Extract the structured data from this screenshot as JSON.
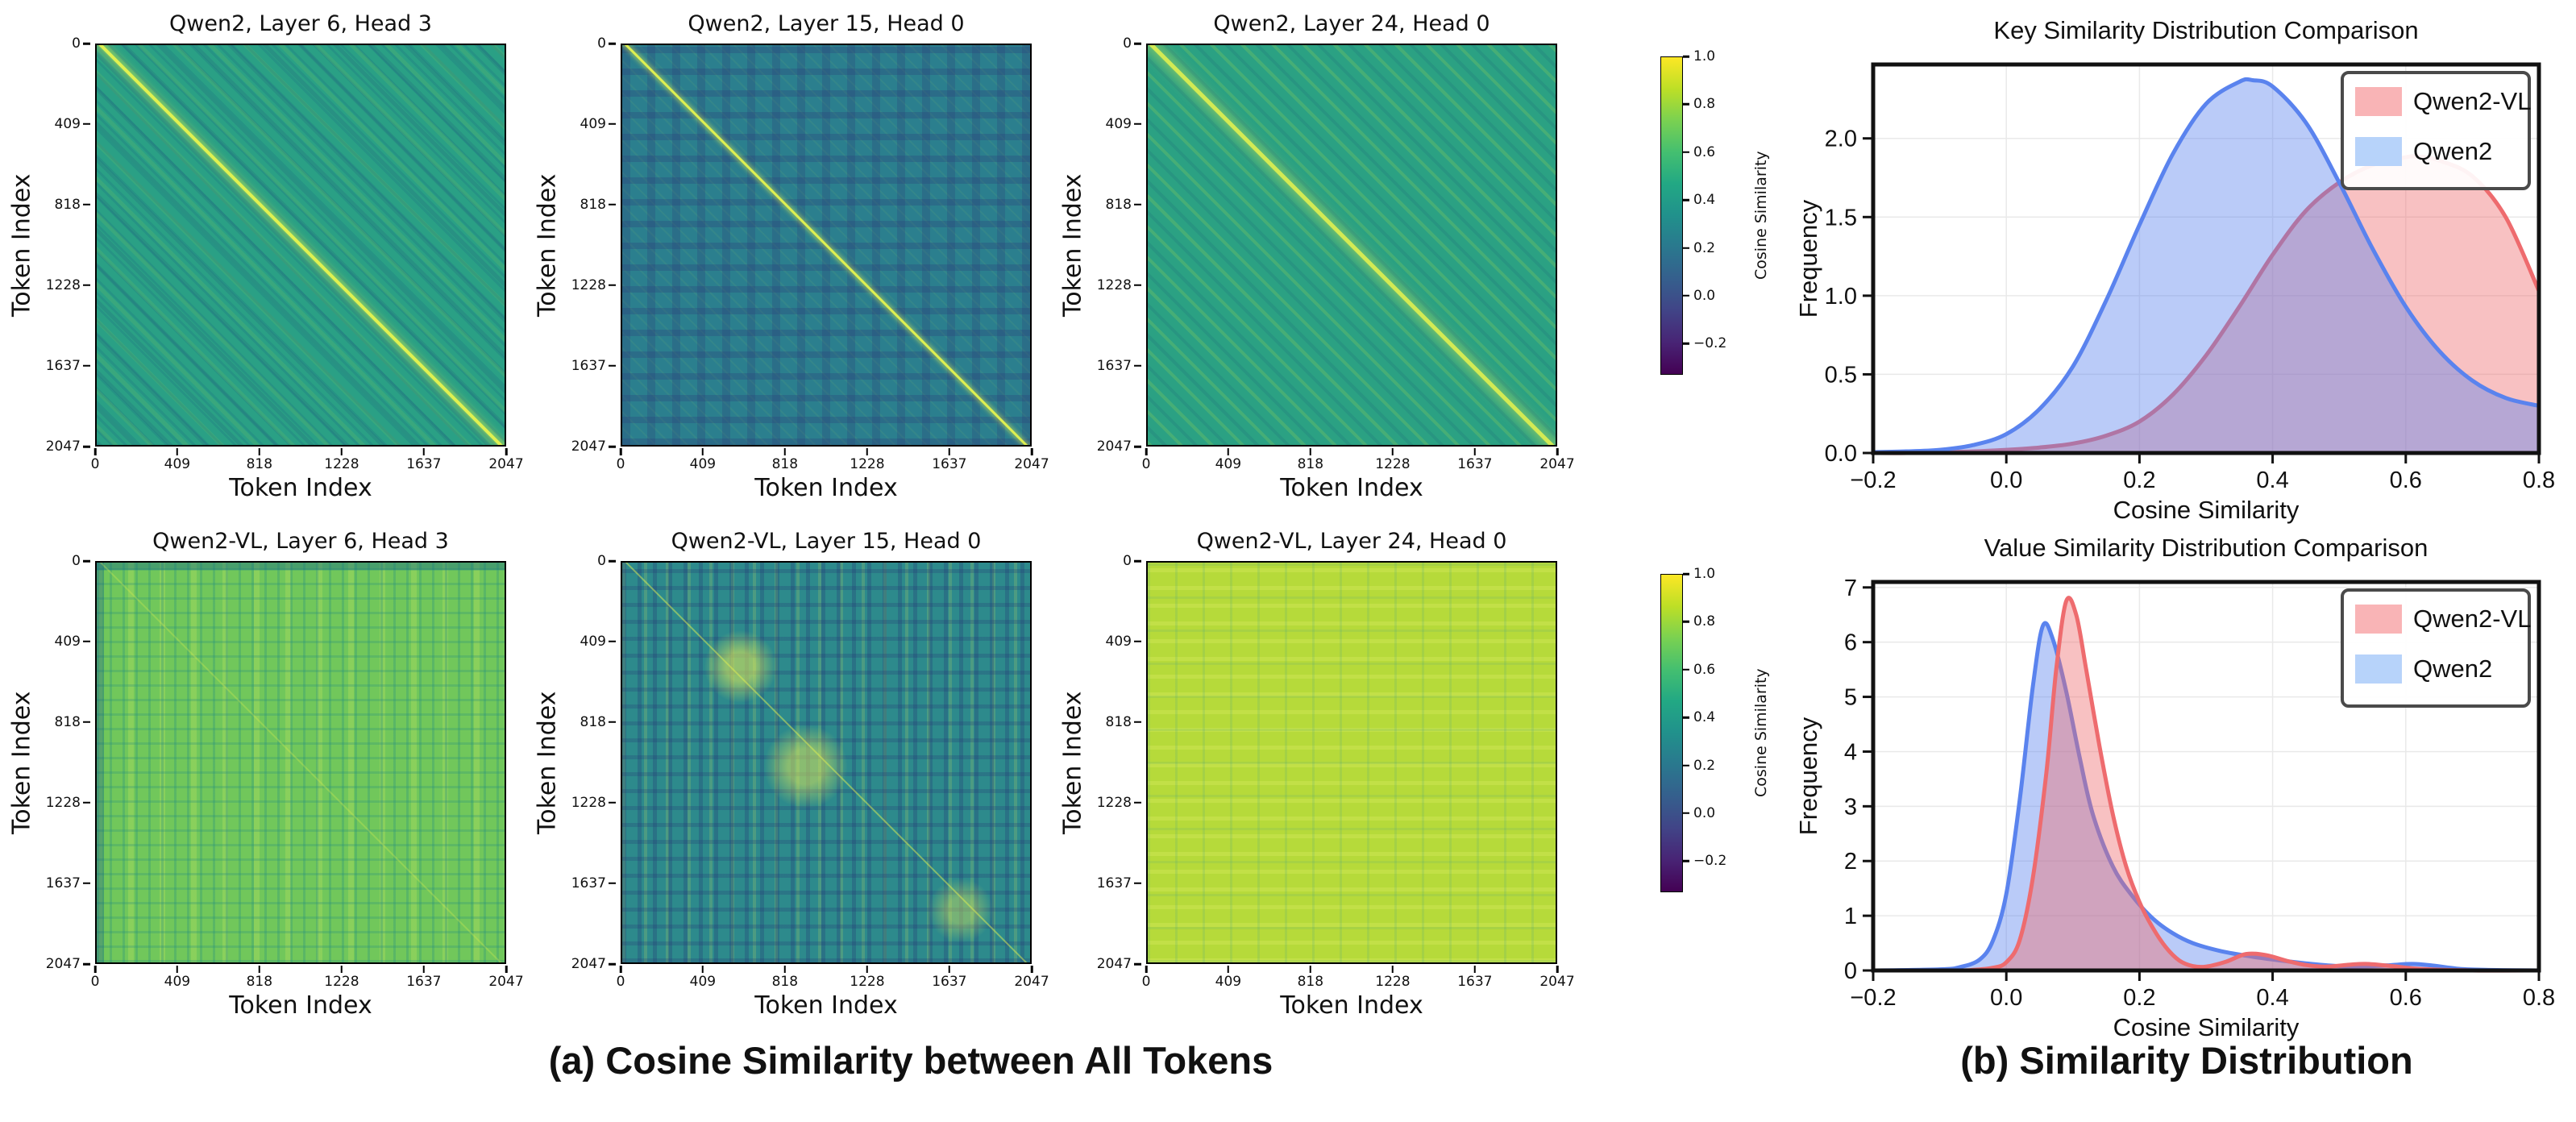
{
  "figure": {
    "caption_a": "(a) Cosine Similarity between All Tokens",
    "caption_b": "(b) Similarity Distribution"
  },
  "colorbar": {
    "label": "Cosine Similarity",
    "ticks": [
      1.0,
      0.8,
      0.6,
      0.4,
      0.2,
      0.0,
      -0.2
    ],
    "vmax": 1.0,
    "vmin": -0.33,
    "cmap": "viridis"
  },
  "colors": {
    "qwen2vl_line": "#ee6b6e",
    "qwen2vl_fill": "rgba(238,107,110,0.42)",
    "qwen2vl_swatch": "#f9b4b6",
    "qwen2_line": "#5a83ee",
    "qwen2_fill": "rgba(90,131,238,0.42)",
    "qwen2_swatch": "#b7d3fa",
    "grid": "#e9e9e9",
    "spine": "#111111"
  },
  "chart_data": [
    {
      "type": "heatmap",
      "title": "Qwen2, Layer 6, Head 3",
      "xlabel": "Token Index",
      "ylabel": "Token Index",
      "x_ticks": [
        0,
        409,
        818,
        1228,
        1637,
        2047
      ],
      "y_ticks": [
        0,
        409,
        818,
        1228,
        1637,
        2047
      ],
      "n_tokens": 2048,
      "value_range": [
        -0.33,
        1.0
      ],
      "appearance": {
        "mean_similarity": 0.45,
        "pattern": "diagonal-stripes",
        "diagonal": "bright-line",
        "base_color": "#2aa085"
      }
    },
    {
      "type": "heatmap",
      "title": "Qwen2, Layer 15, Head 0",
      "xlabel": "Token Index",
      "ylabel": "Token Index",
      "x_ticks": [
        0,
        409,
        818,
        1228,
        1637,
        2047
      ],
      "y_ticks": [
        0,
        409,
        818,
        1228,
        1637,
        2047
      ],
      "n_tokens": 2048,
      "value_range": [
        -0.33,
        1.0
      ],
      "appearance": {
        "mean_similarity": 0.25,
        "pattern": "blocky-noise",
        "diagonal": "bright-line",
        "base_color": "#2b7f8e"
      }
    },
    {
      "type": "heatmap",
      "title": "Qwen2, Layer 24, Head 0",
      "xlabel": "Token Index",
      "ylabel": "Token Index",
      "x_ticks": [
        0,
        409,
        818,
        1228,
        1637,
        2047
      ],
      "y_ticks": [
        0,
        409,
        818,
        1228,
        1637,
        2047
      ],
      "n_tokens": 2048,
      "value_range": [
        -0.33,
        1.0
      ],
      "appearance": {
        "mean_similarity": 0.5,
        "pattern": "diagonal-stripes",
        "diagonal": "bright-line",
        "base_color": "#2ba183"
      }
    },
    {
      "type": "heatmap",
      "title": "Qwen2-VL, Layer 6, Head 3",
      "xlabel": "Token Index",
      "ylabel": "Token Index",
      "x_ticks": [
        0,
        409,
        818,
        1228,
        1637,
        2047
      ],
      "y_ticks": [
        0,
        409,
        818,
        1228,
        1637,
        2047
      ],
      "n_tokens": 2048,
      "value_range": [
        -0.33,
        1.0
      ],
      "appearance": {
        "mean_similarity": 0.65,
        "pattern": "fine-grid",
        "diagonal": "faint",
        "base_color": "#71c75b"
      }
    },
    {
      "type": "heatmap",
      "title": "Qwen2-VL, Layer 15, Head 0",
      "xlabel": "Token Index",
      "ylabel": "Token Index",
      "x_ticks": [
        0,
        409,
        818,
        1228,
        1637,
        2047
      ],
      "y_ticks": [
        0,
        409,
        818,
        1228,
        1637,
        2047
      ],
      "n_tokens": 2048,
      "value_range": [
        -0.33,
        1.0
      ],
      "appearance": {
        "mean_similarity": 0.35,
        "pattern": "grid-noise-with-bright-patches",
        "diagonal": "faint",
        "base_color": "#2d8a8c"
      }
    },
    {
      "type": "heatmap",
      "title": "Qwen2-VL, Layer 24, Head 0",
      "xlabel": "Token Index",
      "ylabel": "Token Index",
      "x_ticks": [
        0,
        409,
        818,
        1228,
        1637,
        2047
      ],
      "n_tokens": 2048,
      "y_ticks": [
        0,
        409,
        818,
        1228,
        1637,
        2047
      ],
      "value_range": [
        -0.33,
        1.0
      ],
      "appearance": {
        "mean_similarity": 0.85,
        "pattern": "near-uniform",
        "diagonal": "none",
        "base_color": "#b6da3a"
      }
    },
    {
      "type": "area",
      "title": "Key Similarity Distribution Comparison",
      "xlabel": "Cosine Similarity",
      "ylabel": "Frequency",
      "xlim": [
        -0.2,
        0.8
      ],
      "ylim": [
        0,
        2.47
      ],
      "x_ticks": [
        -0.2,
        0.0,
        0.2,
        0.4,
        0.6,
        0.8
      ],
      "y_ticks": [
        0.0,
        0.5,
        1.0,
        1.5,
        2.0
      ],
      "x_tick_decimals": 1,
      "y_tick_decimals": 1,
      "grid": true,
      "legend": [
        "Qwen2-VL",
        "Qwen2"
      ],
      "legend_position": "upper right",
      "series": [
        {
          "name": "Qwen2-VL",
          "color": "#ee6b6e",
          "fill": "rgba(238,107,110,0.42)",
          "swatch": "#f9b4b6",
          "x": [
            -0.2,
            -0.15,
            -0.1,
            -0.05,
            0,
            0.05,
            0.1,
            0.15,
            0.2,
            0.25,
            0.3,
            0.35,
            0.4,
            0.45,
            0.5,
            0.55,
            0.6,
            0.62,
            0.65,
            0.7,
            0.75,
            0.8
          ],
          "y": [
            0,
            0,
            0.005,
            0.01,
            0.02,
            0.035,
            0.06,
            0.11,
            0.2,
            0.37,
            0.62,
            0.93,
            1.26,
            1.54,
            1.72,
            1.83,
            1.88,
            1.885,
            1.86,
            1.76,
            1.5,
            1.03
          ]
        },
        {
          "name": "Qwen2",
          "color": "#5a83ee",
          "fill": "rgba(90,131,238,0.42)",
          "swatch": "#b7d3fa",
          "x": [
            -0.2,
            -0.15,
            -0.1,
            -0.05,
            0,
            0.05,
            0.1,
            0.15,
            0.2,
            0.25,
            0.3,
            0.35,
            0.37,
            0.4,
            0.45,
            0.5,
            0.55,
            0.6,
            0.65,
            0.7,
            0.75,
            0.8
          ],
          "y": [
            0.005,
            0.01,
            0.02,
            0.05,
            0.12,
            0.28,
            0.55,
            0.97,
            1.45,
            1.9,
            2.22,
            2.36,
            2.37,
            2.33,
            2.1,
            1.72,
            1.3,
            0.93,
            0.65,
            0.46,
            0.35,
            0.3
          ]
        }
      ]
    },
    {
      "type": "area",
      "title": "Value Similarity Distribution Comparison",
      "xlabel": "Cosine Similarity",
      "ylabel": "Frequency",
      "xlim": [
        -0.2,
        0.8
      ],
      "ylim": [
        0,
        7.1
      ],
      "x_ticks": [
        -0.2,
        0.0,
        0.2,
        0.4,
        0.6,
        0.8
      ],
      "y_ticks": [
        0,
        1,
        2,
        3,
        4,
        5,
        6,
        7
      ],
      "x_tick_decimals": 1,
      "y_tick_decimals": 0,
      "grid": true,
      "legend": [
        "Qwen2-VL",
        "Qwen2"
      ],
      "legend_position": "upper right",
      "series": [
        {
          "name": "Qwen2",
          "color": "#5a83ee",
          "fill": "rgba(90,131,238,0.42)",
          "swatch": "#b7d3fa",
          "x": [
            -0.2,
            -0.1,
            -0.07,
            -0.04,
            -0.02,
            0,
            0.02,
            0.04,
            0.055,
            0.07,
            0.09,
            0.11,
            0.13,
            0.16,
            0.19,
            0.22,
            0.25,
            0.28,
            0.32,
            0.36,
            0.4,
            0.45,
            0.5,
            0.55,
            0.58,
            0.61,
            0.64,
            0.68,
            0.72,
            0.8
          ],
          "y": [
            0,
            0.02,
            0.06,
            0.2,
            0.55,
            1.4,
            3.1,
            5.2,
            6.3,
            6.05,
            5.1,
            3.9,
            2.85,
            1.9,
            1.35,
            0.95,
            0.68,
            0.5,
            0.36,
            0.27,
            0.2,
            0.13,
            0.08,
            0.08,
            0.1,
            0.12,
            0.09,
            0.03,
            0.01,
            0
          ]
        },
        {
          "name": "Qwen2-VL",
          "color": "#ee6b6e",
          "fill": "rgba(238,107,110,0.42)",
          "swatch": "#f9b4b6",
          "x": [
            -0.2,
            -0.08,
            -0.05,
            -0.02,
            0,
            0.02,
            0.04,
            0.06,
            0.075,
            0.09,
            0.105,
            0.12,
            0.14,
            0.16,
            0.18,
            0.2,
            0.22,
            0.24,
            0.26,
            0.28,
            0.3,
            0.33,
            0.36,
            0.39,
            0.42,
            0.45,
            0.48,
            0.51,
            0.54,
            0.58,
            0.62,
            0.7,
            0.8
          ],
          "y": [
            0,
            0,
            0.01,
            0.05,
            0.15,
            0.55,
            1.7,
            3.6,
            5.5,
            6.75,
            6.5,
            5.5,
            4.1,
            2.85,
            1.9,
            1.25,
            0.78,
            0.42,
            0.18,
            0.08,
            0.07,
            0.16,
            0.3,
            0.28,
            0.18,
            0.1,
            0.07,
            0.1,
            0.12,
            0.08,
            0.03,
            0,
            0
          ]
        }
      ]
    }
  ]
}
